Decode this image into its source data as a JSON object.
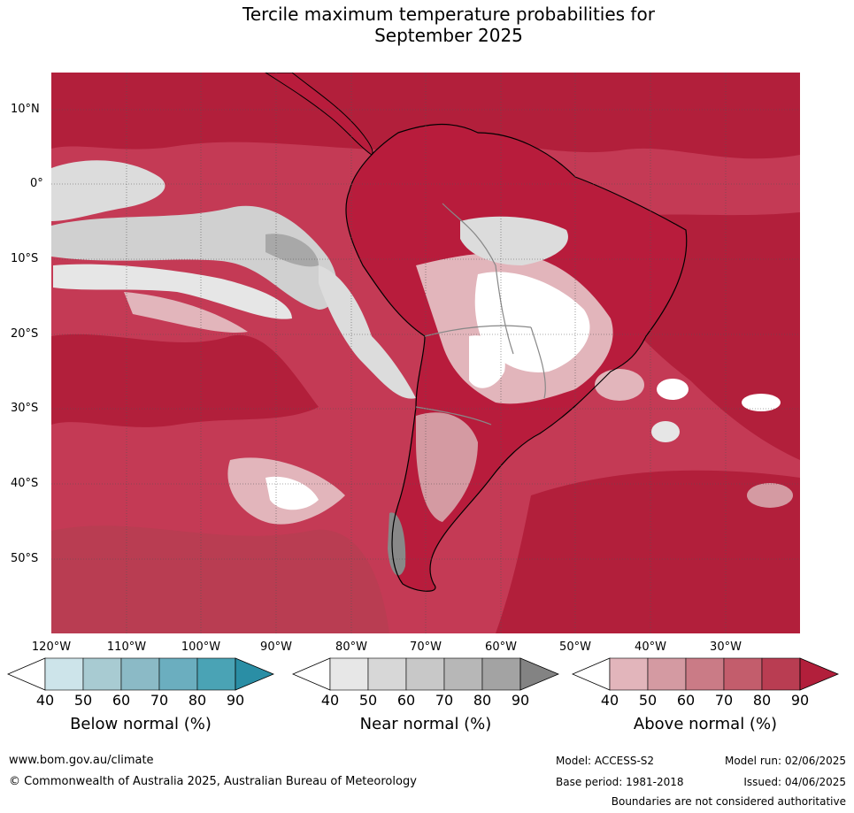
{
  "title_line1": "Tercile maximum temperature probabilities for",
  "title_line2": "September 2025",
  "map": {
    "lat_labels": [
      "10°N",
      "0°",
      "10°S",
      "20°S",
      "30°S",
      "40°S",
      "50°S"
    ],
    "lon_labels": [
      "120°W",
      "110°W",
      "100°W",
      "90°W",
      "80°W",
      "70°W",
      "60°W",
      "50°W",
      "40°W",
      "30°W"
    ],
    "land_tint": "#b81c3c",
    "ocean_base": "#c43a55"
  },
  "colorbars": [
    {
      "title": "Below normal (%)",
      "ticks": [
        "40",
        "50",
        "60",
        "70",
        "80",
        "90"
      ],
      "colors": [
        "#ffffff",
        "#cde4ea",
        "#a8cbd2",
        "#8bbac6",
        "#6baebf",
        "#4aa3b5",
        "#2a8ea5"
      ]
    },
    {
      "title": "Near normal (%)",
      "ticks": [
        "40",
        "50",
        "60",
        "70",
        "80",
        "90"
      ],
      "colors": [
        "#ffffff",
        "#e7e7e7",
        "#d7d7d7",
        "#c8c8c8",
        "#b7b7b7",
        "#a3a3a3",
        "#838383"
      ]
    },
    {
      "title": "Above normal (%)",
      "ticks": [
        "40",
        "50",
        "60",
        "70",
        "80",
        "90"
      ],
      "colors": [
        "#ffffff",
        "#e2b5bb",
        "#d49aa2",
        "#ca7b86",
        "#c35d6c",
        "#b93d52",
        "#b21f3b"
      ]
    }
  ],
  "footer": {
    "website": "www.bom.gov.au/climate",
    "copyright": "© Commonwealth of Australia 2025, Australian Bureau of Meteorology",
    "model": "Model: ACCESS-S2",
    "base_period": "Base period: 1981-2018",
    "model_run": "Model run: 02/06/2025",
    "issued": "Issued: 04/06/2025",
    "disclaimer": "Boundaries are not considered authoritative"
  }
}
